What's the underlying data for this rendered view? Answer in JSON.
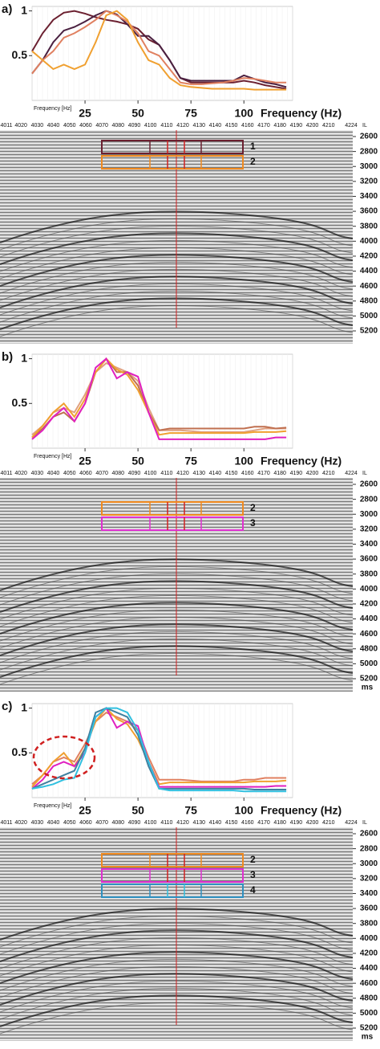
{
  "chart_data": [
    {
      "type": "line",
      "panel_label": "a)",
      "xlabel": "Frequency (Hz)",
      "inner_xlabel": "Frequency [Hz]",
      "x": [
        0,
        5,
        10,
        15,
        20,
        25,
        30,
        35,
        40,
        45,
        50,
        55,
        60,
        65,
        70,
        75,
        80,
        85,
        90,
        95,
        100,
        105,
        110,
        115,
        120
      ],
      "xlim": [
        0,
        123
      ],
      "xticks": [
        25,
        50,
        75,
        100
      ],
      "ylim": [
        0,
        1.05
      ],
      "yticks": [
        0.5,
        1
      ],
      "series": [
        {
          "color": "#6b2030",
          "values": [
            0.55,
            0.75,
            0.9,
            0.98,
            1.0,
            0.97,
            0.93,
            0.9,
            0.88,
            0.85,
            0.8,
            0.68,
            0.62,
            0.45,
            0.25,
            0.2,
            0.2,
            0.2,
            0.2,
            0.2,
            0.22,
            0.2,
            0.17,
            0.15,
            0.13
          ]
        },
        {
          "color": "#4a2040",
          "values": [
            0.3,
            0.45,
            0.65,
            0.78,
            0.82,
            0.88,
            0.95,
            1.0,
            0.96,
            0.85,
            0.72,
            0.72,
            0.62,
            0.45,
            0.25,
            0.22,
            0.22,
            0.22,
            0.22,
            0.22,
            0.28,
            0.24,
            0.2,
            0.18,
            0.15
          ]
        },
        {
          "color": "#e08060",
          "values": [
            0.3,
            0.45,
            0.55,
            0.7,
            0.75,
            0.82,
            0.9,
            1.0,
            0.95,
            0.88,
            0.75,
            0.55,
            0.5,
            0.35,
            0.2,
            0.18,
            0.18,
            0.19,
            0.2,
            0.22,
            0.25,
            0.24,
            0.22,
            0.2,
            0.2
          ]
        },
        {
          "color": "#f0a030",
          "values": [
            0.55,
            0.45,
            0.35,
            0.4,
            0.35,
            0.4,
            0.65,
            0.95,
            1.0,
            0.9,
            0.65,
            0.45,
            0.4,
            0.25,
            0.17,
            0.15,
            0.14,
            0.13,
            0.13,
            0.13,
            0.13,
            0.12,
            0.12,
            0.12,
            0.12
          ]
        }
      ]
    },
    {
      "type": "line",
      "panel_label": "b)",
      "xlabel": "Frequency (Hz)",
      "inner_xlabel": "Frequency [Hz]",
      "x": [
        0,
        5,
        10,
        15,
        20,
        25,
        30,
        35,
        40,
        45,
        50,
        55,
        60,
        65,
        70,
        75,
        80,
        85,
        90,
        95,
        100,
        105,
        110,
        115,
        120
      ],
      "xlim": [
        0,
        123
      ],
      "xticks": [
        25,
        50,
        75,
        100
      ],
      "ylim": [
        0,
        1.05
      ],
      "yticks": [
        0.5,
        1
      ],
      "series": [
        {
          "color": "#e0a080",
          "values": [
            0.15,
            0.25,
            0.4,
            0.45,
            0.4,
            0.6,
            0.85,
            0.95,
            0.9,
            0.85,
            0.75,
            0.45,
            0.2,
            0.2,
            0.2,
            0.19,
            0.18,
            0.18,
            0.18,
            0.18,
            0.18,
            0.2,
            0.22,
            0.22,
            0.22
          ]
        },
        {
          "color": "#c07050",
          "values": [
            0.12,
            0.22,
            0.35,
            0.4,
            0.3,
            0.5,
            0.85,
            1.0,
            0.85,
            0.85,
            0.7,
            0.4,
            0.2,
            0.22,
            0.22,
            0.22,
            0.22,
            0.22,
            0.22,
            0.22,
            0.22,
            0.24,
            0.24,
            0.22,
            0.23
          ]
        },
        {
          "color": "#f0a030",
          "values": [
            0.12,
            0.25,
            0.4,
            0.5,
            0.35,
            0.55,
            0.85,
            1.0,
            0.88,
            0.82,
            0.65,
            0.4,
            0.15,
            0.17,
            0.17,
            0.17,
            0.17,
            0.17,
            0.17,
            0.17,
            0.17,
            0.18,
            0.18,
            0.18,
            0.19
          ]
        },
        {
          "color": "#e020c0",
          "values": [
            0.1,
            0.2,
            0.35,
            0.45,
            0.3,
            0.5,
            0.9,
            1.0,
            0.78,
            0.85,
            0.8,
            0.4,
            0.1,
            0.1,
            0.1,
            0.1,
            0.1,
            0.1,
            0.1,
            0.1,
            0.1,
            0.1,
            0.1,
            0.12,
            0.12
          ]
        }
      ]
    },
    {
      "type": "line",
      "panel_label": "c)",
      "xlabel": "Frequency (Hz)",
      "inner_xlabel": "Frequency [Hz]",
      "x": [
        0,
        5,
        10,
        15,
        20,
        25,
        30,
        35,
        40,
        45,
        50,
        55,
        60,
        65,
        70,
        75,
        80,
        85,
        90,
        95,
        100,
        105,
        110,
        115,
        120
      ],
      "xlim": [
        0,
        123
      ],
      "xticks": [
        25,
        50,
        75,
        100
      ],
      "ylim": [
        0,
        1.05
      ],
      "yticks": [
        0.5,
        1
      ],
      "series": [
        {
          "color": "#e08060",
          "values": [
            0.15,
            0.25,
            0.4,
            0.45,
            0.4,
            0.6,
            0.85,
            0.95,
            0.9,
            0.85,
            0.75,
            0.45,
            0.2,
            0.2,
            0.2,
            0.19,
            0.18,
            0.18,
            0.18,
            0.18,
            0.2,
            0.2,
            0.22,
            0.22,
            0.22
          ]
        },
        {
          "color": "#f0a030",
          "values": [
            0.12,
            0.25,
            0.4,
            0.5,
            0.35,
            0.55,
            0.85,
            1.0,
            0.88,
            0.82,
            0.65,
            0.4,
            0.15,
            0.17,
            0.17,
            0.17,
            0.17,
            0.17,
            0.17,
            0.17,
            0.17,
            0.18,
            0.18,
            0.18,
            0.19
          ]
        },
        {
          "color": "#e020c0",
          "values": [
            0.1,
            0.2,
            0.35,
            0.4,
            0.35,
            0.5,
            0.9,
            1.0,
            0.78,
            0.85,
            0.8,
            0.4,
            0.12,
            0.12,
            0.12,
            0.12,
            0.12,
            0.12,
            0.12,
            0.12,
            0.12,
            0.12,
            0.12,
            0.13,
            0.13
          ]
        },
        {
          "color": "#4080a0",
          "values": [
            0.1,
            0.15,
            0.2,
            0.25,
            0.3,
            0.55,
            0.95,
            1.0,
            0.95,
            0.9,
            0.7,
            0.35,
            0.1,
            0.1,
            0.1,
            0.1,
            0.1,
            0.1,
            0.1,
            0.1,
            0.1,
            0.09,
            0.09,
            0.09,
            0.09
          ]
        },
        {
          "color": "#30c0e0",
          "values": [
            0.1,
            0.12,
            0.15,
            0.2,
            0.22,
            0.5,
            0.9,
            1.0,
            1.0,
            0.95,
            0.75,
            0.4,
            0.1,
            0.08,
            0.08,
            0.08,
            0.08,
            0.08,
            0.08,
            0.08,
            0.07,
            0.07,
            0.07,
            0.07,
            0.07
          ]
        }
      ]
    }
  ],
  "sections": [
    {
      "il_ticks": [
        4011,
        4020,
        4030,
        4040,
        4050,
        4060,
        4070,
        4080,
        4090,
        4100,
        4110,
        4120,
        4130,
        4140,
        4150,
        4160,
        4170,
        4180,
        4190,
        4200,
        4210,
        4224
      ],
      "il_unit": "IL",
      "time_ticks": [
        2600,
        2800,
        3000,
        3200,
        3400,
        3600,
        3800,
        4000,
        4200,
        4400,
        4600,
        4800,
        5000,
        5200
      ],
      "boxes": [
        {
          "label": "1",
          "color": "#6b2030"
        },
        {
          "label": "2",
          "color": "#f08a20"
        }
      ]
    },
    {
      "il_ticks": [
        4011,
        4020,
        4030,
        4040,
        4050,
        4060,
        4070,
        4080,
        4090,
        4100,
        4110,
        4120,
        4130,
        4140,
        4150,
        4160,
        4170,
        4180,
        4190,
        4200,
        4210,
        4224
      ],
      "il_unit": "IL",
      "time_ticks": [
        2600,
        2800,
        3000,
        3200,
        3400,
        3600,
        3800,
        4000,
        4200,
        4400,
        4600,
        4800,
        5000,
        5200
      ],
      "time_unit": "ms",
      "boxes": [
        {
          "label": "2",
          "color": "#f08a20"
        },
        {
          "label": "3",
          "color": "#e030d0"
        }
      ]
    },
    {
      "il_ticks": [
        4011,
        4020,
        4030,
        4040,
        4050,
        4060,
        4070,
        4080,
        4090,
        4100,
        4110,
        4120,
        4130,
        4140,
        4150,
        4160,
        4170,
        4180,
        4190,
        4200,
        4210,
        4224
      ],
      "il_unit": "IL",
      "time_ticks": [
        2600,
        2800,
        3000,
        3200,
        3400,
        3600,
        3800,
        4000,
        4200,
        4400,
        4600,
        4800,
        5000,
        5200
      ],
      "time_unit": "ms",
      "boxes": [
        {
          "label": "2",
          "color": "#f08a20"
        },
        {
          "label": "3",
          "color": "#e030d0"
        },
        {
          "label": "4",
          "color": "#3090c0"
        }
      ]
    }
  ]
}
